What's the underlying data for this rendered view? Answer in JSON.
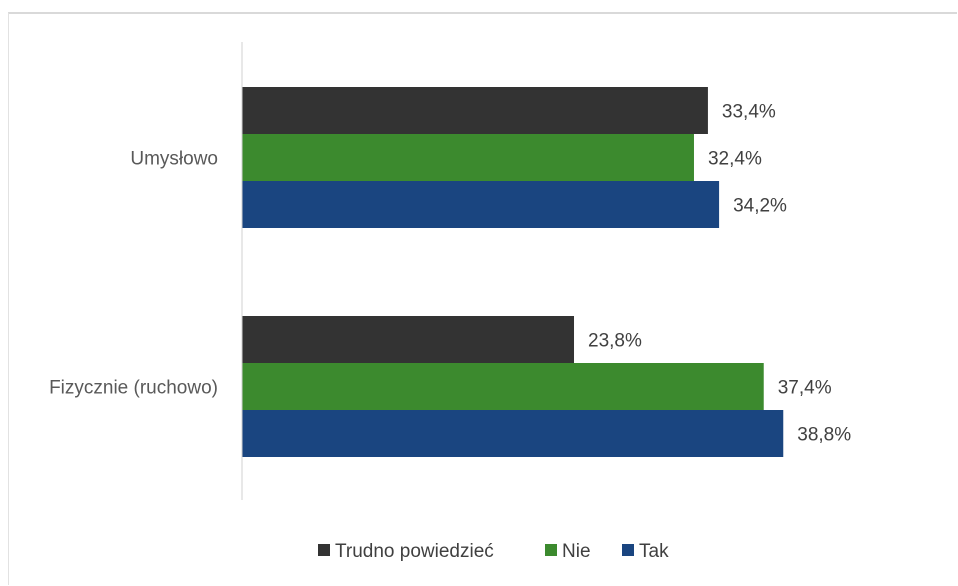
{
  "chart_data": {
    "type": "bar",
    "orientation": "horizontal",
    "categories": [
      "Umysłowo",
      "Fizycznie (ruchowo)"
    ],
    "series": [
      {
        "name": "Trudno powiedzieć",
        "values": [
          33.4,
          23.8
        ],
        "labels": [
          "33,4%",
          "23,8%"
        ],
        "color": "#333333"
      },
      {
        "name": "Nie",
        "values": [
          32.4,
          37.4
        ],
        "labels": [
          "32,4%",
          "37,4%"
        ],
        "color": "#3c8a2e"
      },
      {
        "name": "Tak",
        "values": [
          34.2,
          38.8
        ],
        "labels": [
          "34,2%",
          "38,8%"
        ],
        "color": "#1a4580"
      }
    ],
    "xlim": [
      0,
      50
    ],
    "grid": false,
    "legend_position": "bottom"
  }
}
